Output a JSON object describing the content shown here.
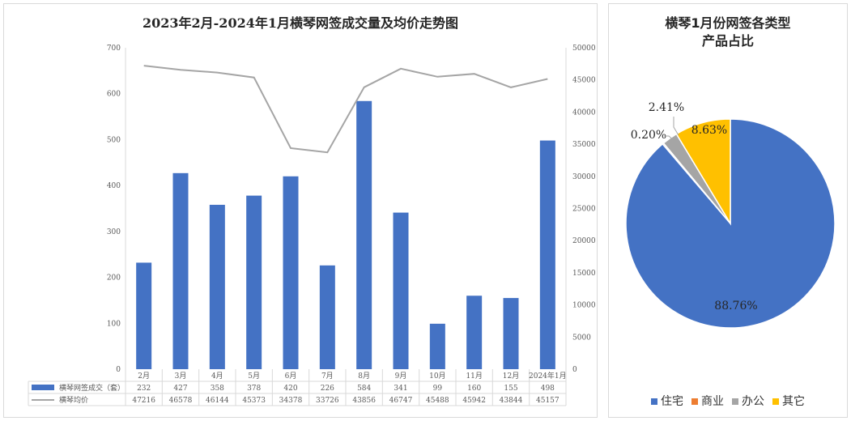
{
  "chart_data": [
    {
      "type": "bar+line",
      "title": "2023年2月-2024年1月横琴网签成交量及均价走势图",
      "categories": [
        "2月",
        "3月",
        "4月",
        "5月",
        "6月",
        "7月",
        "8月",
        "9月",
        "10月",
        "11月",
        "12月",
        "2024年1月"
      ],
      "series": [
        {
          "name": "横琴网签成交（套）",
          "type": "bar",
          "axis": "left",
          "values": [
            232,
            427,
            358,
            378,
            420,
            226,
            584,
            341,
            99,
            160,
            155,
            498
          ],
          "color": "#4472c4"
        },
        {
          "name": "横琴均价",
          "type": "line",
          "axis": "right",
          "values": [
            47216,
            46578,
            46144,
            45373,
            34378,
            33726,
            43856,
            46747,
            45488,
            45942,
            43844,
            45157
          ],
          "color": "#a5a5a5"
        }
      ],
      "left_axis": {
        "ylim": [
          0,
          700
        ],
        "ticks": [
          "0",
          "100",
          "200",
          "300",
          "400",
          "500",
          "600",
          "700"
        ]
      },
      "right_axis": {
        "ylim": [
          0,
          50000
        ],
        "ticks": [
          "0",
          "5000",
          "10000",
          "15000",
          "20000",
          "25000",
          "30000",
          "35000",
          "40000",
          "45000",
          "50000"
        ]
      },
      "grid": false,
      "legend": "data-table-bottom"
    },
    {
      "type": "pie",
      "title_line1": "横琴1月份网签各类型",
      "title_line2": "产品占比",
      "slices": [
        {
          "name": "住宅",
          "value": 88.76,
          "label": "88.76%",
          "color": "#4472c4"
        },
        {
          "name": "商业",
          "value": 0.2,
          "label": "0.20%",
          "color": "#ed7d31"
        },
        {
          "name": "办公",
          "value": 2.41,
          "label": "2.41%",
          "color": "#a5a5a5"
        },
        {
          "name": "其它",
          "value": 8.63,
          "label": "8.63%",
          "color": "#ffc000"
        }
      ],
      "legend": "bottom"
    }
  ]
}
